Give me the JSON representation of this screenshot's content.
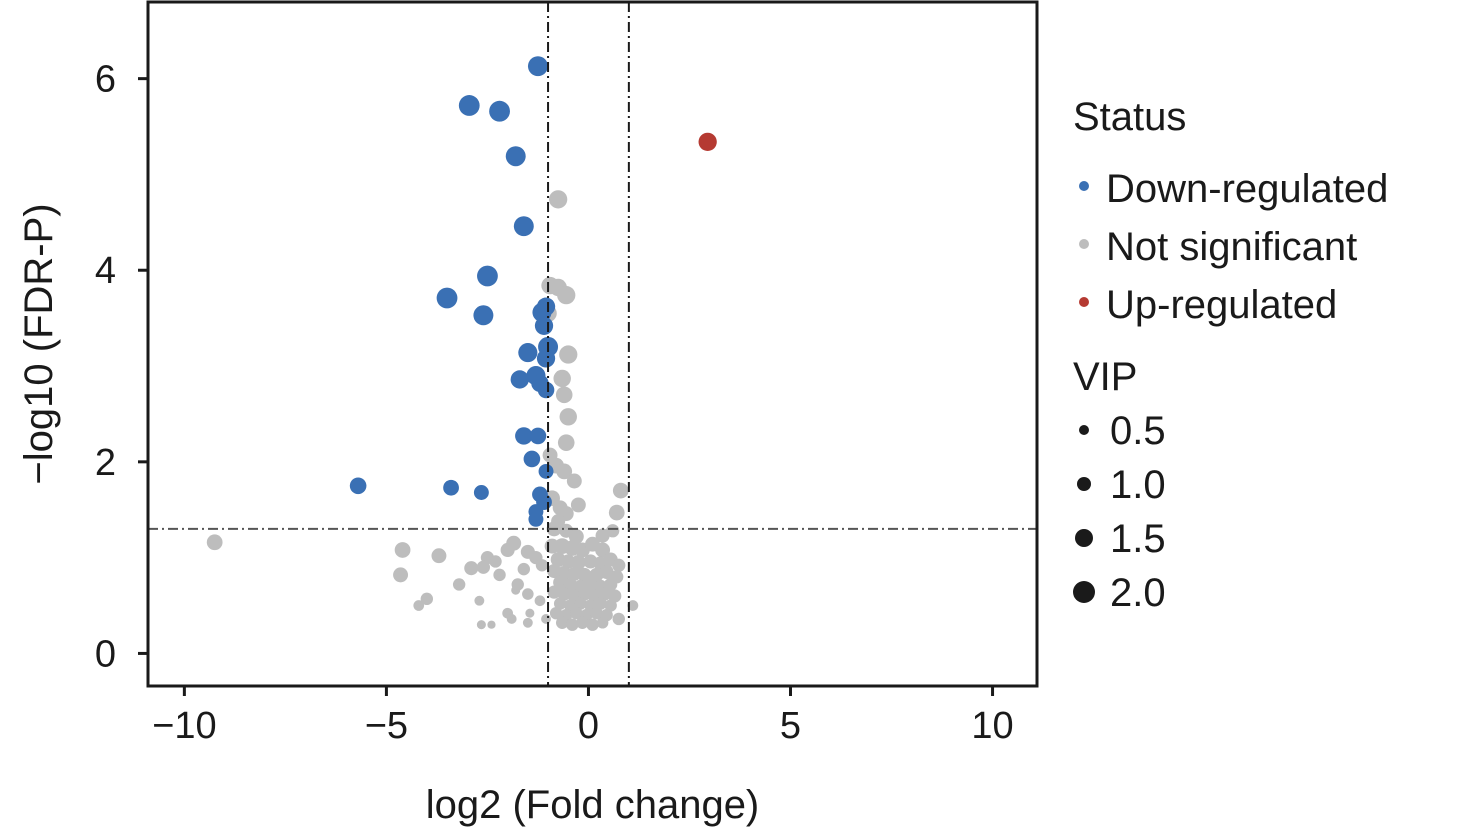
{
  "chart_data": {
    "type": "scatter",
    "title": "",
    "xlabel": "log2 (Fold change)",
    "ylabel": "−log10 (FDR-P)",
    "xlim": [
      -10.9,
      11.1
    ],
    "ylim": [
      -0.34,
      6.8
    ],
    "xticks": [
      -10,
      -5,
      0,
      5,
      10
    ],
    "xtick_labels": [
      "−10",
      "−5",
      "0",
      "5",
      "10"
    ],
    "yticks": [
      0,
      2,
      4,
      6
    ],
    "ytick_labels": [
      "0",
      "2",
      "4",
      "6"
    ],
    "grid": false,
    "reference_lines": {
      "vertical": [
        -1,
        1
      ],
      "horizontal": [
        1.3
      ]
    },
    "legend": {
      "position": "right",
      "status_title": "Status",
      "status_items": [
        {
          "label": "Down-regulated",
          "color": "#3a70b4"
        },
        {
          "label": "Not significant",
          "color": "#bdbdbd"
        },
        {
          "label": "Up-regulated",
          "color": "#b53a32"
        }
      ],
      "size_title": "VIP",
      "size_items": [
        {
          "label": "0.5",
          "value": 0.5
        },
        {
          "label": "1.0",
          "value": 1.0
        },
        {
          "label": "1.5",
          "value": 1.5
        },
        {
          "label": "2.0",
          "value": 2.0
        }
      ]
    },
    "colors": {
      "Down-regulated": "#3a70b4",
      "Not significant": "#bdbdbd",
      "Up-regulated": "#b53a32"
    },
    "series": [
      {
        "name": "Down-regulated",
        "points": [
          {
            "x": -1.25,
            "y": 6.13,
            "vip": 1.9
          },
          {
            "x": -2.95,
            "y": 5.72,
            "vip": 2.0
          },
          {
            "x": -2.2,
            "y": 5.66,
            "vip": 2.0
          },
          {
            "x": -1.8,
            "y": 5.19,
            "vip": 1.9
          },
          {
            "x": -1.6,
            "y": 4.46,
            "vip": 1.9
          },
          {
            "x": -2.5,
            "y": 3.94,
            "vip": 2.0
          },
          {
            "x": -3.5,
            "y": 3.71,
            "vip": 2.0
          },
          {
            "x": -2.6,
            "y": 3.53,
            "vip": 1.9
          },
          {
            "x": -1.15,
            "y": 3.56,
            "vip": 1.8
          },
          {
            "x": -1.05,
            "y": 3.62,
            "vip": 1.7
          },
          {
            "x": -1.1,
            "y": 3.42,
            "vip": 1.7
          },
          {
            "x": -1.5,
            "y": 3.14,
            "vip": 1.8
          },
          {
            "x": -1.0,
            "y": 3.2,
            "vip": 1.9
          },
          {
            "x": -1.05,
            "y": 3.08,
            "vip": 1.7
          },
          {
            "x": -1.7,
            "y": 2.86,
            "vip": 1.7
          },
          {
            "x": -1.3,
            "y": 2.9,
            "vip": 1.8
          },
          {
            "x": -1.2,
            "y": 2.82,
            "vip": 1.6
          },
          {
            "x": -1.05,
            "y": 2.75,
            "vip": 1.5
          },
          {
            "x": -1.6,
            "y": 2.27,
            "vip": 1.6
          },
          {
            "x": -1.25,
            "y": 2.27,
            "vip": 1.5
          },
          {
            "x": -1.4,
            "y": 2.03,
            "vip": 1.5
          },
          {
            "x": -1.05,
            "y": 1.9,
            "vip": 1.3
          },
          {
            "x": -5.7,
            "y": 1.75,
            "vip": 1.5
          },
          {
            "x": -3.4,
            "y": 1.73,
            "vip": 1.4
          },
          {
            "x": -2.65,
            "y": 1.68,
            "vip": 1.3
          },
          {
            "x": -1.2,
            "y": 1.66,
            "vip": 1.4
          },
          {
            "x": -1.1,
            "y": 1.58,
            "vip": 1.4
          },
          {
            "x": -1.3,
            "y": 1.48,
            "vip": 1.3
          },
          {
            "x": -1.3,
            "y": 1.4,
            "vip": 1.3
          }
        ]
      },
      {
        "name": "Not significant",
        "points": [
          {
            "x": -0.75,
            "y": 4.74,
            "vip": 1.7
          },
          {
            "x": -0.95,
            "y": 3.84,
            "vip": 1.6
          },
          {
            "x": -0.75,
            "y": 3.82,
            "vip": 1.6
          },
          {
            "x": -0.55,
            "y": 3.74,
            "vip": 1.7
          },
          {
            "x": -1.0,
            "y": 3.55,
            "vip": 1.6
          },
          {
            "x": -0.5,
            "y": 3.12,
            "vip": 1.7
          },
          {
            "x": -0.65,
            "y": 2.87,
            "vip": 1.6
          },
          {
            "x": -0.6,
            "y": 2.7,
            "vip": 1.5
          },
          {
            "x": -0.5,
            "y": 2.47,
            "vip": 1.6
          },
          {
            "x": -0.55,
            "y": 2.2,
            "vip": 1.5
          },
          {
            "x": -0.95,
            "y": 2.07,
            "vip": 1.3
          },
          {
            "x": -0.8,
            "y": 1.96,
            "vip": 1.4
          },
          {
            "x": -0.6,
            "y": 1.9,
            "vip": 1.4
          },
          {
            "x": -0.35,
            "y": 1.8,
            "vip": 1.3
          },
          {
            "x": -0.9,
            "y": 1.62,
            "vip": 1.4
          },
          {
            "x": -0.7,
            "y": 1.52,
            "vip": 1.3
          },
          {
            "x": -0.55,
            "y": 1.46,
            "vip": 1.3
          },
          {
            "x": -0.25,
            "y": 1.55,
            "vip": 1.3
          },
          {
            "x": -0.75,
            "y": 1.38,
            "vip": 1.2
          },
          {
            "x": 0.8,
            "y": 1.7,
            "vip": 1.4
          },
          {
            "x": 0.7,
            "y": 1.47,
            "vip": 1.4
          },
          {
            "x": -0.85,
            "y": 1.3,
            "vip": 1.3
          },
          {
            "x": -0.55,
            "y": 1.28,
            "vip": 1.2
          },
          {
            "x": -0.3,
            "y": 1.22,
            "vip": 1.3
          },
          {
            "x": 0.35,
            "y": 1.23,
            "vip": 1.2
          },
          {
            "x": 0.6,
            "y": 1.28,
            "vip": 1.1
          },
          {
            "x": -9.25,
            "y": 1.16,
            "vip": 1.4
          },
          {
            "x": -4.6,
            "y": 1.08,
            "vip": 1.4
          },
          {
            "x": -3.7,
            "y": 1.02,
            "vip": 1.3
          },
          {
            "x": -2.5,
            "y": 1.0,
            "vip": 1.1
          },
          {
            "x": -2.3,
            "y": 0.96,
            "vip": 1.0
          },
          {
            "x": -2.0,
            "y": 1.08,
            "vip": 1.2
          },
          {
            "x": -1.85,
            "y": 1.15,
            "vip": 1.3
          },
          {
            "x": -1.5,
            "y": 1.06,
            "vip": 1.2
          },
          {
            "x": -1.3,
            "y": 1.0,
            "vip": 1.1
          },
          {
            "x": -1.15,
            "y": 0.92,
            "vip": 1.0
          },
          {
            "x": -1.6,
            "y": 0.88,
            "vip": 1.0
          },
          {
            "x": -2.2,
            "y": 0.82,
            "vip": 1.0
          },
          {
            "x": -2.9,
            "y": 0.89,
            "vip": 1.2
          },
          {
            "x": -2.6,
            "y": 0.9,
            "vip": 1.1
          },
          {
            "x": -4.65,
            "y": 0.82,
            "vip": 1.3
          },
          {
            "x": -3.2,
            "y": 0.72,
            "vip": 1.0
          },
          {
            "x": -1.75,
            "y": 0.72,
            "vip": 1.0
          },
          {
            "x": -1.5,
            "y": 0.62,
            "vip": 0.9
          },
          {
            "x": -4.0,
            "y": 0.57,
            "vip": 1.0
          },
          {
            "x": -4.2,
            "y": 0.5,
            "vip": 0.8
          },
          {
            "x": -2.7,
            "y": 0.55,
            "vip": 0.7
          },
          {
            "x": -1.2,
            "y": 0.55,
            "vip": 0.8
          },
          {
            "x": -2.0,
            "y": 0.42,
            "vip": 0.8
          },
          {
            "x": -1.9,
            "y": 0.36,
            "vip": 0.7
          },
          {
            "x": -1.5,
            "y": 0.32,
            "vip": 0.7
          },
          {
            "x": -2.65,
            "y": 0.3,
            "vip": 0.6
          },
          {
            "x": -2.4,
            "y": 0.3,
            "vip": 0.5
          },
          {
            "x": -1.05,
            "y": 0.36,
            "vip": 0.7
          },
          {
            "x": -1.45,
            "y": 0.42,
            "vip": 0.6
          },
          {
            "x": -1.8,
            "y": 0.66,
            "vip": 0.6
          },
          {
            "x": -0.9,
            "y": 1.12,
            "vip": 1.3
          },
          {
            "x": -0.65,
            "y": 1.12,
            "vip": 1.4
          },
          {
            "x": -0.4,
            "y": 1.1,
            "vip": 1.4
          },
          {
            "x": -0.15,
            "y": 1.08,
            "vip": 1.3
          },
          {
            "x": 0.1,
            "y": 1.14,
            "vip": 1.3
          },
          {
            "x": 0.35,
            "y": 1.08,
            "vip": 1.3
          },
          {
            "x": -0.75,
            "y": 0.98,
            "vip": 1.3
          },
          {
            "x": -0.5,
            "y": 0.96,
            "vip": 1.2
          },
          {
            "x": -0.25,
            "y": 0.95,
            "vip": 1.3
          },
          {
            "x": 0.05,
            "y": 0.96,
            "vip": 1.2
          },
          {
            "x": 0.3,
            "y": 0.94,
            "vip": 1.2
          },
          {
            "x": 0.55,
            "y": 0.98,
            "vip": 1.2
          },
          {
            "x": 0.75,
            "y": 0.92,
            "vip": 1.1
          },
          {
            "x": -0.85,
            "y": 0.86,
            "vip": 1.2
          },
          {
            "x": -0.6,
            "y": 0.84,
            "vip": 1.2
          },
          {
            "x": -0.35,
            "y": 0.83,
            "vip": 1.2
          },
          {
            "x": -0.1,
            "y": 0.82,
            "vip": 1.2
          },
          {
            "x": 0.2,
            "y": 0.82,
            "vip": 1.2
          },
          {
            "x": 0.45,
            "y": 0.85,
            "vip": 1.2
          },
          {
            "x": 0.7,
            "y": 0.8,
            "vip": 1.1
          },
          {
            "x": -0.7,
            "y": 0.74,
            "vip": 1.2
          },
          {
            "x": -0.45,
            "y": 0.72,
            "vip": 1.1
          },
          {
            "x": -0.2,
            "y": 0.7,
            "vip": 1.1
          },
          {
            "x": 0.05,
            "y": 0.72,
            "vip": 1.1
          },
          {
            "x": 0.3,
            "y": 0.7,
            "vip": 1.1
          },
          {
            "x": 0.55,
            "y": 0.72,
            "vip": 1.1
          },
          {
            "x": -0.85,
            "y": 0.64,
            "vip": 1.1
          },
          {
            "x": -0.6,
            "y": 0.62,
            "vip": 1.1
          },
          {
            "x": -0.35,
            "y": 0.6,
            "vip": 1.1
          },
          {
            "x": -0.1,
            "y": 0.62,
            "vip": 1.1
          },
          {
            "x": 0.15,
            "y": 0.6,
            "vip": 1.1
          },
          {
            "x": 0.4,
            "y": 0.62,
            "vip": 1.1
          },
          {
            "x": 0.65,
            "y": 0.6,
            "vip": 1.1
          },
          {
            "x": -0.7,
            "y": 0.52,
            "vip": 1.0
          },
          {
            "x": -0.45,
            "y": 0.5,
            "vip": 1.0
          },
          {
            "x": -0.2,
            "y": 0.52,
            "vip": 1.0
          },
          {
            "x": 0.05,
            "y": 0.5,
            "vip": 1.0
          },
          {
            "x": 0.3,
            "y": 0.52,
            "vip": 1.0
          },
          {
            "x": 0.55,
            "y": 0.5,
            "vip": 1.0
          },
          {
            "x": 1.1,
            "y": 0.5,
            "vip": 0.8
          },
          {
            "x": -0.8,
            "y": 0.42,
            "vip": 1.0
          },
          {
            "x": -0.55,
            "y": 0.4,
            "vip": 1.0
          },
          {
            "x": -0.3,
            "y": 0.42,
            "vip": 1.0
          },
          {
            "x": -0.05,
            "y": 0.4,
            "vip": 1.0
          },
          {
            "x": 0.2,
            "y": 0.42,
            "vip": 1.0
          },
          {
            "x": 0.45,
            "y": 0.4,
            "vip": 1.0
          },
          {
            "x": -0.65,
            "y": 0.32,
            "vip": 1.0
          },
          {
            "x": -0.4,
            "y": 0.3,
            "vip": 1.0
          },
          {
            "x": -0.15,
            "y": 0.32,
            "vip": 1.0
          },
          {
            "x": 0.1,
            "y": 0.3,
            "vip": 1.0
          },
          {
            "x": 0.35,
            "y": 0.32,
            "vip": 0.9
          },
          {
            "x": 0.75,
            "y": 0.36,
            "vip": 1.0
          }
        ]
      },
      {
        "name": "Up-regulated",
        "points": [
          {
            "x": 2.95,
            "y": 5.34,
            "vip": 1.7
          }
        ]
      }
    ]
  }
}
